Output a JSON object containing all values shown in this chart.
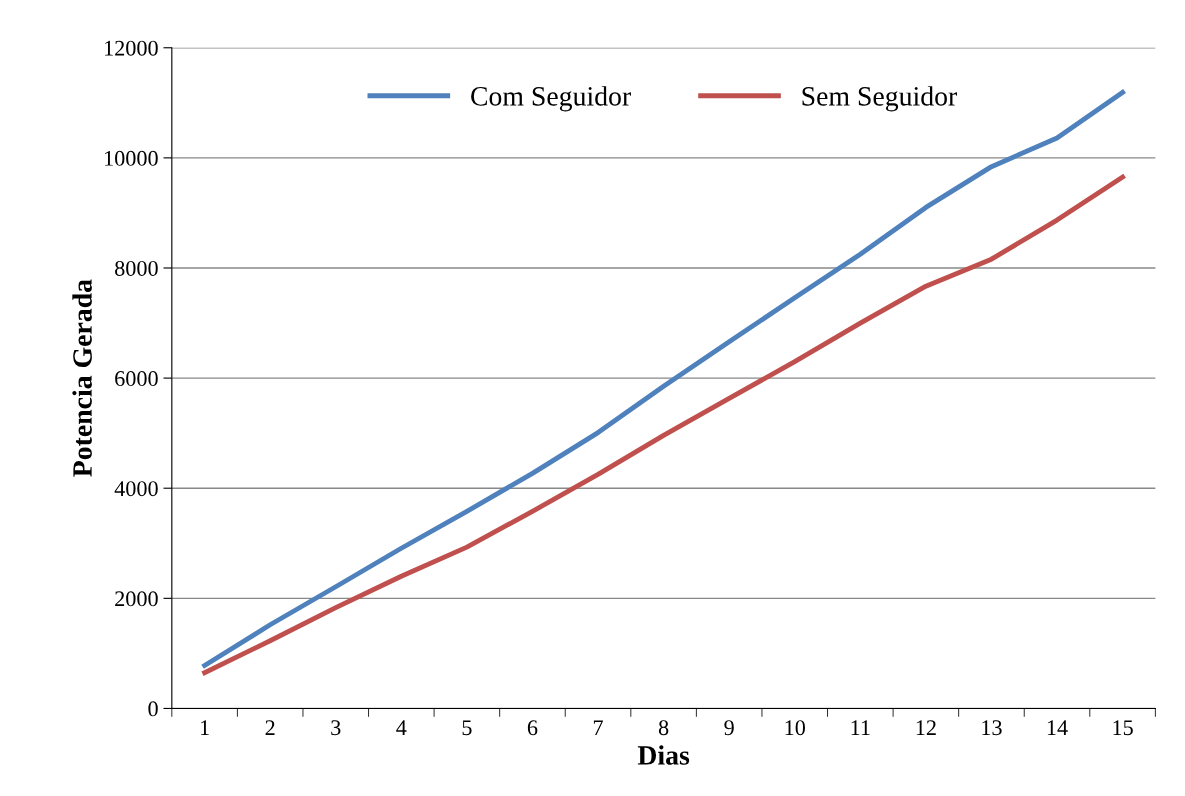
{
  "chart_data": {
    "type": "line",
    "xlabel": "Dias",
    "ylabel": "Potencia Gerada",
    "categories": [
      "1",
      "2",
      "3",
      "4",
      "5",
      "6",
      "7",
      "8",
      "9",
      "10",
      "11",
      "12",
      "13",
      "14",
      "15"
    ],
    "series": [
      {
        "name": "Com Seguidor",
        "color": "#4f81bd",
        "values": [
          780,
          1520,
          2210,
          2910,
          3580,
          4270,
          5010,
          5850,
          6660,
          7460,
          8250,
          9100,
          9840,
          10360,
          11190
        ]
      },
      {
        "name": "Sem Seguidor",
        "color": "#c0504d",
        "values": [
          650,
          1230,
          1830,
          2400,
          2930,
          3580,
          4250,
          4960,
          5630,
          6300,
          7000,
          7670,
          8160,
          8870,
          9650
        ]
      }
    ],
    "ylim": [
      0,
      12000
    ],
    "yticks": [
      0,
      2000,
      4000,
      6000,
      8000,
      10000,
      12000
    ],
    "grid": "y",
    "legend": "top",
    "marker": "none",
    "line_style": "solid"
  }
}
